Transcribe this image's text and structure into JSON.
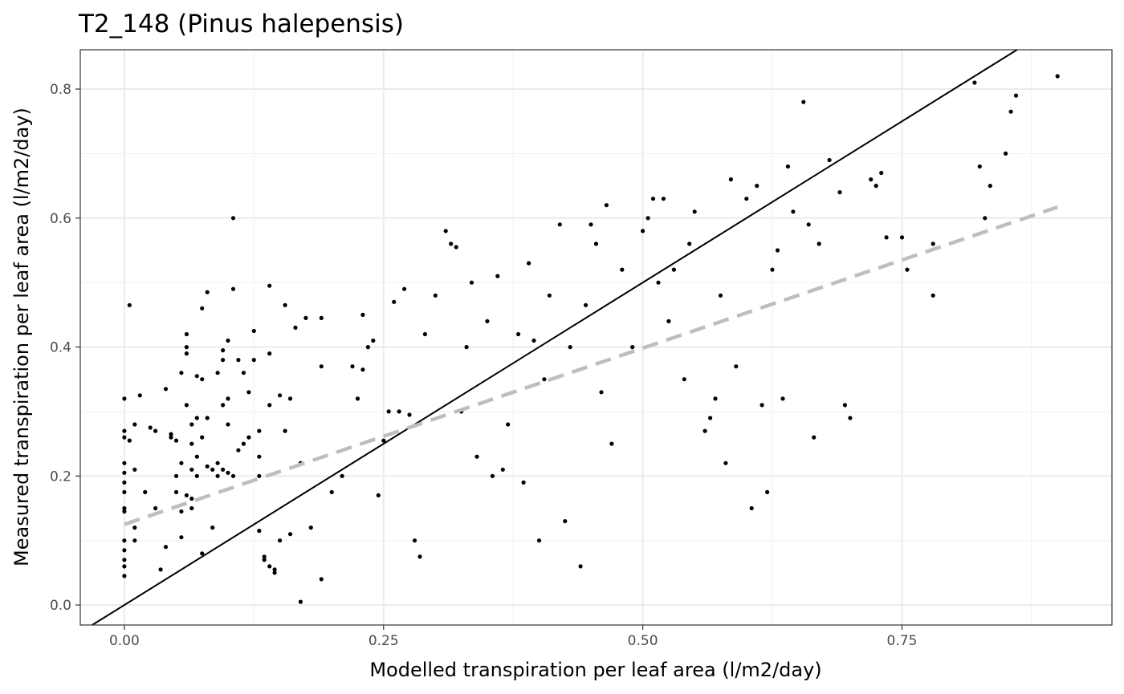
{
  "chart_data": {
    "type": "scatter",
    "title": "T2_148 (Pinus halepensis)",
    "xlabel": "Modelled transpiration per leaf area (l/m2/day)",
    "ylabel": "Measured transpiration per leaf area (l/m2/day)",
    "xlim": [
      -0.0425,
      0.9525
    ],
    "ylim": [
      -0.031,
      0.861
    ],
    "xticks": [
      0.0,
      0.25,
      0.5,
      0.75
    ],
    "xtick_labels": [
      "0.00",
      "0.25",
      "0.50",
      "0.75"
    ],
    "yticks": [
      0.0,
      0.2,
      0.4,
      0.6,
      0.8
    ],
    "ytick_labels": [
      "0.0",
      "0.2",
      "0.4",
      "0.6",
      "0.8"
    ],
    "grid": true,
    "background": "#ffffff",
    "point_color": "#000000",
    "identity_line": {
      "style": "solid",
      "color": "#000000",
      "slope": 1,
      "intercept": 0
    },
    "fit_line": {
      "style": "dashed",
      "color": "#bebebe",
      "x": [
        0.0,
        0.9
      ],
      "y": [
        0.125,
        0.617
      ]
    },
    "points": [
      [
        0.0,
        0.32
      ],
      [
        0.0,
        0.27
      ],
      [
        0.0,
        0.26
      ],
      [
        0.0,
        0.22
      ],
      [
        0.0,
        0.205
      ],
      [
        0.0,
        0.19
      ],
      [
        0.0,
        0.175
      ],
      [
        0.0,
        0.15
      ],
      [
        0.0,
        0.145
      ],
      [
        0.0,
        0.1
      ],
      [
        0.0,
        0.085
      ],
      [
        0.0,
        0.07
      ],
      [
        0.0,
        0.06
      ],
      [
        0.0,
        0.045
      ],
      [
        0.005,
        0.465
      ],
      [
        0.005,
        0.255
      ],
      [
        0.01,
        0.28
      ],
      [
        0.01,
        0.21
      ],
      [
        0.01,
        0.12
      ],
      [
        0.01,
        0.1
      ],
      [
        0.015,
        0.325
      ],
      [
        0.02,
        0.175
      ],
      [
        0.025,
        0.275
      ],
      [
        0.03,
        0.27
      ],
      [
        0.03,
        0.15
      ],
      [
        0.035,
        0.055
      ],
      [
        0.04,
        0.335
      ],
      [
        0.04,
        0.09
      ],
      [
        0.045,
        0.265
      ],
      [
        0.045,
        0.26
      ],
      [
        0.05,
        0.255
      ],
      [
        0.05,
        0.2
      ],
      [
        0.05,
        0.175
      ],
      [
        0.055,
        0.36
      ],
      [
        0.055,
        0.22
      ],
      [
        0.055,
        0.145
      ],
      [
        0.055,
        0.105
      ],
      [
        0.06,
        0.42
      ],
      [
        0.06,
        0.4
      ],
      [
        0.06,
        0.39
      ],
      [
        0.06,
        0.31
      ],
      [
        0.06,
        0.17
      ],
      [
        0.065,
        0.28
      ],
      [
        0.065,
        0.25
      ],
      [
        0.065,
        0.21
      ],
      [
        0.065,
        0.165
      ],
      [
        0.065,
        0.15
      ],
      [
        0.07,
        0.355
      ],
      [
        0.07,
        0.29
      ],
      [
        0.07,
        0.23
      ],
      [
        0.07,
        0.2
      ],
      [
        0.075,
        0.46
      ],
      [
        0.075,
        0.35
      ],
      [
        0.075,
        0.26
      ],
      [
        0.075,
        0.08
      ],
      [
        0.08,
        0.485
      ],
      [
        0.08,
        0.29
      ],
      [
        0.08,
        0.215
      ],
      [
        0.085,
        0.21
      ],
      [
        0.085,
        0.12
      ],
      [
        0.09,
        0.36
      ],
      [
        0.09,
        0.22
      ],
      [
        0.09,
        0.2
      ],
      [
        0.095,
        0.395
      ],
      [
        0.095,
        0.38
      ],
      [
        0.095,
        0.31
      ],
      [
        0.095,
        0.21
      ],
      [
        0.1,
        0.41
      ],
      [
        0.1,
        0.32
      ],
      [
        0.1,
        0.28
      ],
      [
        0.1,
        0.205
      ],
      [
        0.105,
        0.6
      ],
      [
        0.105,
        0.49
      ],
      [
        0.105,
        0.2
      ],
      [
        0.11,
        0.38
      ],
      [
        0.11,
        0.24
      ],
      [
        0.115,
        0.36
      ],
      [
        0.115,
        0.25
      ],
      [
        0.12,
        0.33
      ],
      [
        0.12,
        0.26
      ],
      [
        0.125,
        0.425
      ],
      [
        0.125,
        0.38
      ],
      [
        0.13,
        0.27
      ],
      [
        0.13,
        0.23
      ],
      [
        0.13,
        0.2
      ],
      [
        0.13,
        0.115
      ],
      [
        0.135,
        0.075
      ],
      [
        0.135,
        0.07
      ],
      [
        0.14,
        0.495
      ],
      [
        0.14,
        0.39
      ],
      [
        0.14,
        0.31
      ],
      [
        0.14,
        0.06
      ],
      [
        0.145,
        0.055
      ],
      [
        0.145,
        0.05
      ],
      [
        0.15,
        0.325
      ],
      [
        0.15,
        0.1
      ],
      [
        0.155,
        0.465
      ],
      [
        0.155,
        0.27
      ],
      [
        0.16,
        0.32
      ],
      [
        0.16,
        0.11
      ],
      [
        0.165,
        0.43
      ],
      [
        0.17,
        0.22
      ],
      [
        0.17,
        0.005
      ],
      [
        0.175,
        0.445
      ],
      [
        0.18,
        0.12
      ],
      [
        0.19,
        0.445
      ],
      [
        0.19,
        0.37
      ],
      [
        0.19,
        0.04
      ],
      [
        0.2,
        0.175
      ],
      [
        0.21,
        0.2
      ],
      [
        0.22,
        0.37
      ],
      [
        0.225,
        0.32
      ],
      [
        0.23,
        0.45
      ],
      [
        0.23,
        0.365
      ],
      [
        0.235,
        0.4
      ],
      [
        0.24,
        0.41
      ],
      [
        0.245,
        0.17
      ],
      [
        0.25,
        0.255
      ],
      [
        0.255,
        0.3
      ],
      [
        0.26,
        0.47
      ],
      [
        0.265,
        0.3
      ],
      [
        0.27,
        0.49
      ],
      [
        0.275,
        0.295
      ],
      [
        0.28,
        0.1
      ],
      [
        0.285,
        0.075
      ],
      [
        0.29,
        0.42
      ],
      [
        0.3,
        0.48
      ],
      [
        0.31,
        0.58
      ],
      [
        0.315,
        0.56
      ],
      [
        0.32,
        0.555
      ],
      [
        0.325,
        0.3
      ],
      [
        0.33,
        0.4
      ],
      [
        0.335,
        0.5
      ],
      [
        0.34,
        0.23
      ],
      [
        0.35,
        0.44
      ],
      [
        0.355,
        0.2
      ],
      [
        0.36,
        0.51
      ],
      [
        0.365,
        0.21
      ],
      [
        0.37,
        0.28
      ],
      [
        0.38,
        0.42
      ],
      [
        0.385,
        0.19
      ],
      [
        0.39,
        0.53
      ],
      [
        0.395,
        0.41
      ],
      [
        0.4,
        0.1
      ],
      [
        0.405,
        0.35
      ],
      [
        0.41,
        0.48
      ],
      [
        0.42,
        0.59
      ],
      [
        0.425,
        0.13
      ],
      [
        0.43,
        0.4
      ],
      [
        0.44,
        0.06
      ],
      [
        0.445,
        0.465
      ],
      [
        0.45,
        0.59
      ],
      [
        0.455,
        0.56
      ],
      [
        0.46,
        0.33
      ],
      [
        0.465,
        0.62
      ],
      [
        0.47,
        0.25
      ],
      [
        0.48,
        0.52
      ],
      [
        0.49,
        0.4
      ],
      [
        0.5,
        0.58
      ],
      [
        0.505,
        0.6
      ],
      [
        0.51,
        0.63
      ],
      [
        0.515,
        0.5
      ],
      [
        0.52,
        0.63
      ],
      [
        0.525,
        0.44
      ],
      [
        0.53,
        0.52
      ],
      [
        0.54,
        0.35
      ],
      [
        0.545,
        0.56
      ],
      [
        0.55,
        0.61
      ],
      [
        0.56,
        0.27
      ],
      [
        0.565,
        0.29
      ],
      [
        0.57,
        0.32
      ],
      [
        0.575,
        0.48
      ],
      [
        0.58,
        0.22
      ],
      [
        0.585,
        0.66
      ],
      [
        0.59,
        0.37
      ],
      [
        0.6,
        0.63
      ],
      [
        0.605,
        0.15
      ],
      [
        0.61,
        0.65
      ],
      [
        0.615,
        0.31
      ],
      [
        0.62,
        0.175
      ],
      [
        0.625,
        0.52
      ],
      [
        0.63,
        0.55
      ],
      [
        0.635,
        0.32
      ],
      [
        0.64,
        0.68
      ],
      [
        0.645,
        0.61
      ],
      [
        0.655,
        0.78
      ],
      [
        0.66,
        0.59
      ],
      [
        0.665,
        0.26
      ],
      [
        0.67,
        0.56
      ],
      [
        0.68,
        0.69
      ],
      [
        0.69,
        0.64
      ],
      [
        0.695,
        0.31
      ],
      [
        0.7,
        0.29
      ],
      [
        0.72,
        0.66
      ],
      [
        0.725,
        0.65
      ],
      [
        0.73,
        0.67
      ],
      [
        0.735,
        0.57
      ],
      [
        0.75,
        0.57
      ],
      [
        0.755,
        0.52
      ],
      [
        0.78,
        0.56
      ],
      [
        0.78,
        0.48
      ],
      [
        0.82,
        0.81
      ],
      [
        0.825,
        0.68
      ],
      [
        0.83,
        0.6
      ],
      [
        0.835,
        0.65
      ],
      [
        0.85,
        0.7
      ],
      [
        0.855,
        0.765
      ],
      [
        0.86,
        0.79
      ],
      [
        0.9,
        0.82
      ]
    ]
  }
}
